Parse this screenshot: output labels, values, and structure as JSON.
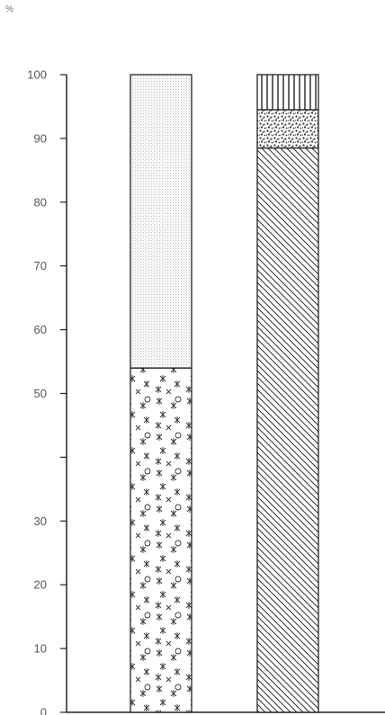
{
  "chart_data": {
    "type": "bar",
    "stacked": true,
    "ylabel": "%",
    "ylim": [
      0,
      100
    ],
    "yticks": [
      {
        "value": 0,
        "label": "0"
      },
      {
        "value": 10,
        "label": "10"
      },
      {
        "value": 20,
        "label": "20"
      },
      {
        "value": 30,
        "label": "30"
      },
      {
        "value": 40,
        "label": ""
      },
      {
        "value": 50,
        "label": "50"
      },
      {
        "value": 60,
        "label": "60"
      },
      {
        "value": 70,
        "label": "70"
      },
      {
        "value": 80,
        "label": "80"
      },
      {
        "value": 90,
        "label": "90"
      },
      {
        "value": 100,
        "label": "100"
      }
    ],
    "grid": false,
    "legend": "none",
    "bars": [
      {
        "segments": [
          {
            "from": 0,
            "to": 54,
            "pattern": "asterisks-circles"
          },
          {
            "from": 54,
            "to": 100,
            "pattern": "fine-stipple"
          }
        ]
      },
      {
        "segments": [
          {
            "from": 0,
            "to": 88.5,
            "pattern": "diagonal-hatch"
          },
          {
            "from": 88.5,
            "to": 94.5,
            "pattern": "coarse-dots"
          },
          {
            "from": 94.5,
            "to": 100,
            "pattern": "vertical-lines"
          }
        ]
      }
    ]
  }
}
